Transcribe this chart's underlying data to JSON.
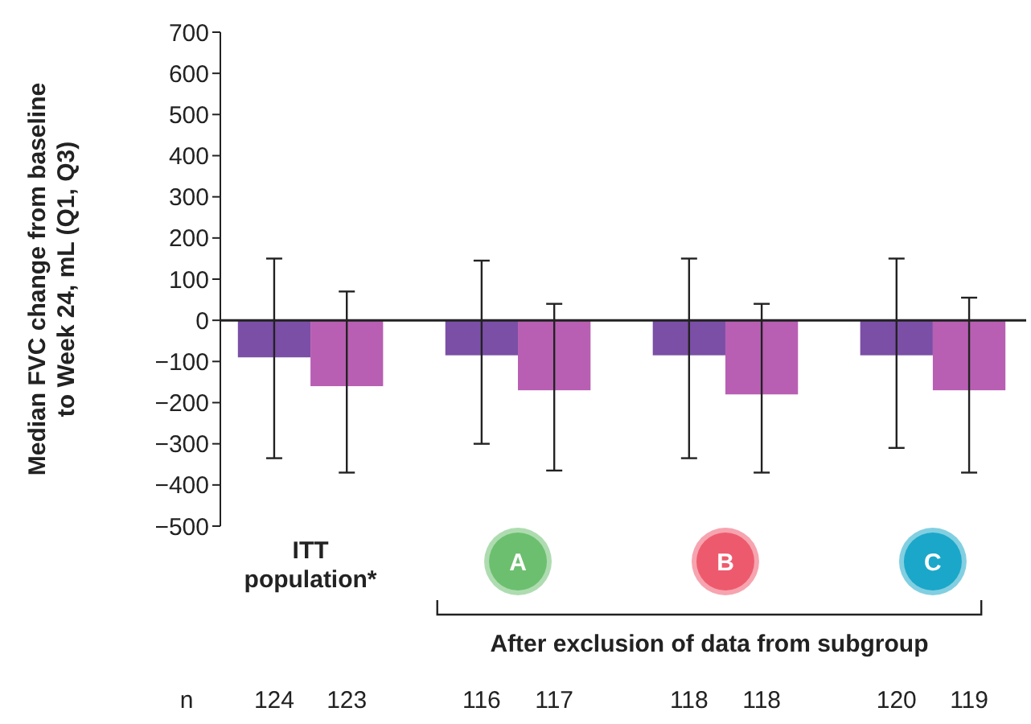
{
  "chart_data": {
    "type": "bar",
    "ylabel": "Median FVC change from baseline\nto Week 24, mL (Q1, Q3)",
    "categories": [
      "ITT population*",
      "A",
      "B",
      "C"
    ],
    "series": [
      {
        "color": "#7b4fa6",
        "values": [
          -90,
          -85,
          -85,
          -85
        ],
        "errors": [
          [
            -335,
            150
          ],
          [
            -300,
            145
          ],
          [
            -335,
            150
          ],
          [
            -310,
            150
          ]
        ]
      },
      {
        "color": "#b85fb3",
        "values": [
          -160,
          -170,
          -180,
          -170
        ],
        "errors": [
          [
            -370,
            70
          ],
          [
            -365,
            40
          ],
          [
            -370,
            40
          ],
          [
            -370,
            55
          ]
        ]
      }
    ],
    "ylim": [
      -500,
      700
    ],
    "yticks": [
      {
        "value": -500,
        "label": "−500"
      },
      {
        "value": -400,
        "label": "−400"
      },
      {
        "value": -300,
        "label": "−300"
      },
      {
        "value": -200,
        "label": "−200"
      },
      {
        "value": -100,
        "label": "−100"
      },
      0,
      100,
      200,
      300,
      400,
      500,
      600,
      700
    ],
    "annotations": [
      "After exclusion of data from subgroup",
      "n",
      "124",
      "123",
      "116",
      "117",
      "118",
      "118",
      "120",
      "119"
    ]
  }
}
